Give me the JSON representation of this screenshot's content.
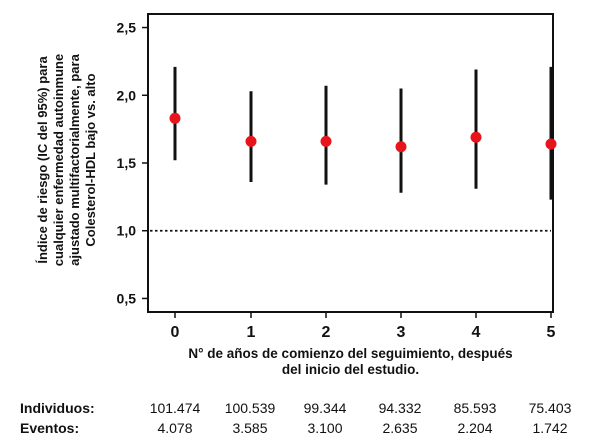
{
  "chart_data": {
    "type": "scatter",
    "title": "",
    "ylabel_lines": [
      "Índice de riesgo (IC del 95%) para",
      "cualquier enfermedad autoinmune",
      "ajustado multifactorialmente, para",
      "Colesterol-HDL bajo vs. alto"
    ],
    "xlabel_lines": [
      "N° de años de comienzo del seguimiento, después",
      "del inicio del estudio."
    ],
    "categories": [
      "0",
      "1",
      "2",
      "3",
      "4",
      "5"
    ],
    "estimates": [
      1.83,
      1.66,
      1.66,
      1.62,
      1.69,
      1.64
    ],
    "ci_lower": [
      1.52,
      1.36,
      1.34,
      1.28,
      1.31,
      1.23
    ],
    "ci_upper": [
      2.21,
      2.03,
      2.07,
      2.05,
      2.19,
      2.21
    ],
    "y_ticks": [
      "0,5",
      "1,0",
      "1,5",
      "2,0",
      "2,5"
    ],
    "y_tick_values": [
      0.5,
      1.0,
      1.5,
      2.0,
      2.5
    ],
    "ylim": [
      0.4,
      2.6
    ],
    "reference_line": 1.0,
    "point_color": "#e8141b",
    "line_color": "#111111"
  },
  "table": {
    "individuos_label": "Individuos:",
    "eventos_label": "Eventos:",
    "individuos": [
      "101.474",
      "100.539",
      "99.344",
      "94.332",
      "85.593",
      "75.403"
    ],
    "eventos": [
      "4.078",
      "3.585",
      "3.100",
      "2.635",
      "2.204",
      "1.742"
    ]
  }
}
